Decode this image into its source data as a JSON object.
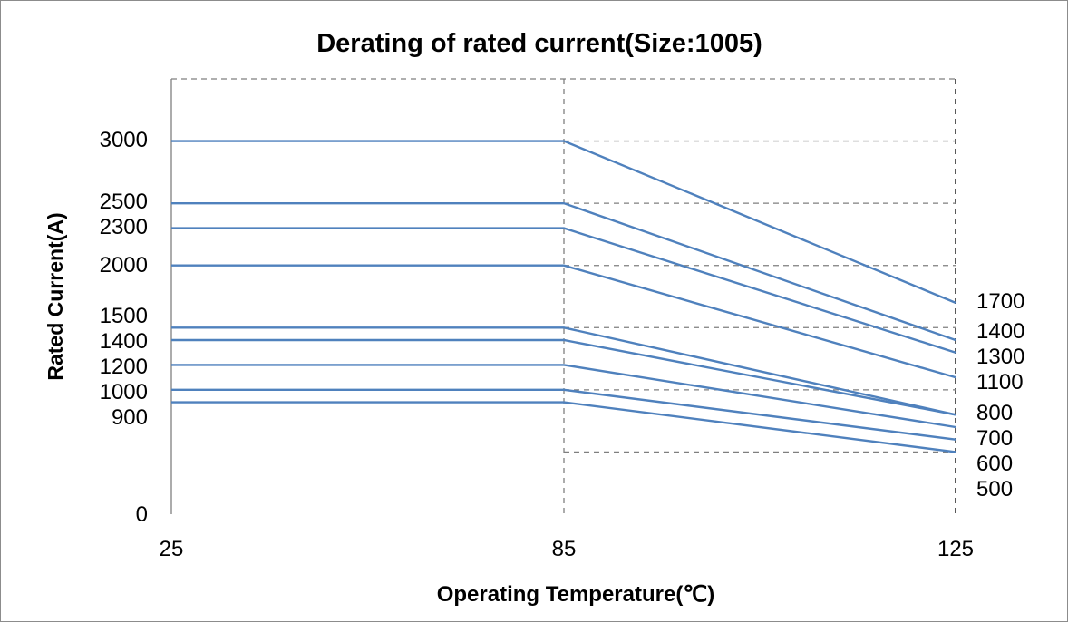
{
  "chart_data": {
    "type": "line",
    "title": "Derating of rated current(Size:1005)",
    "xlabel": "Operating Temperature(℃)",
    "ylabel": "Rated Current(A)",
    "x": [
      25,
      85,
      125
    ],
    "x_tick_labels": [
      "25",
      "85",
      "125"
    ],
    "ylim": [
      0,
      3500
    ],
    "y_zero_label": "0",
    "grid": "dashed horizontal lines every 500 A between 85 and 125, dashed verticals at 85 and 125",
    "line_color": "#4f81bd",
    "series": [
      {
        "values": [
          3000,
          3000,
          1700
        ]
      },
      {
        "values": [
          2500,
          2500,
          1400
        ]
      },
      {
        "values": [
          2300,
          2300,
          1300
        ]
      },
      {
        "values": [
          2000,
          2000,
          1100
        ]
      },
      {
        "values": [
          1500,
          1500,
          800
        ]
      },
      {
        "values": [
          1400,
          1400,
          800
        ]
      },
      {
        "values": [
          1200,
          1200,
          700
        ]
      },
      {
        "values": [
          1000,
          1000,
          600
        ]
      },
      {
        "values": [
          900,
          900,
          500
        ]
      }
    ],
    "left_labels": [
      "3000",
      "2500",
      "2300",
      "2000",
      "1500",
      "1400",
      "1200",
      "1000",
      "900"
    ],
    "right_labels": [
      "1700",
      "1400",
      "1300",
      "1100",
      "800",
      "700",
      "600",
      "500"
    ]
  }
}
